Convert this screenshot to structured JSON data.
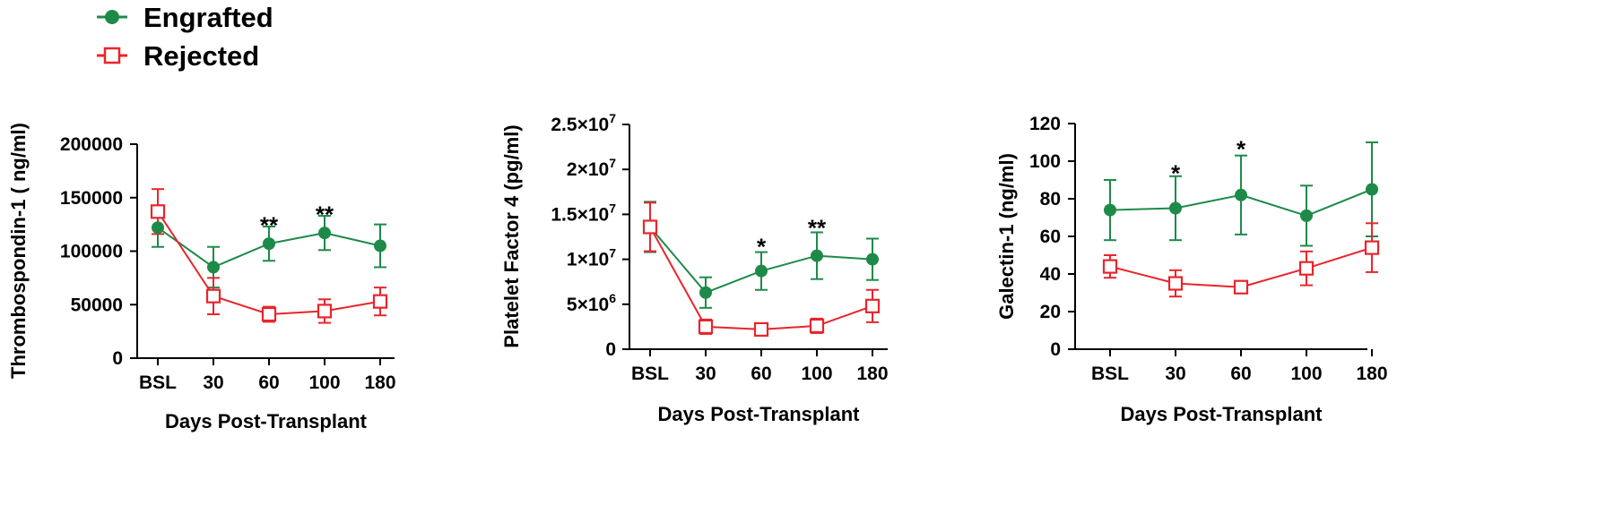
{
  "legend": [
    {
      "name": "Engrafted",
      "color": "#1e8a49",
      "marker": "filled-circle"
    },
    {
      "name": "Rejected",
      "color": "#e8252b",
      "marker": "open-square"
    }
  ],
  "chart_data": [
    {
      "type": "line",
      "ylabel": "Thrombospondin-1 ( ng/ml)",
      "xlabel": "Days Post-Transplant",
      "categories": [
        "BSL",
        "30",
        "60",
        "100",
        "180"
      ],
      "ylim": [
        0,
        200000
      ],
      "yticks": [
        0,
        50000,
        100000,
        150000,
        200000
      ],
      "ytick_labels": [
        "0",
        "50000",
        "100000",
        "150000",
        "200000"
      ],
      "series": [
        {
          "name": "Engrafted",
          "values": [
            122000,
            85000,
            107000,
            117000,
            105000
          ],
          "errors": [
            18000,
            19000,
            16000,
            16000,
            20000
          ]
        },
        {
          "name": "Rejected",
          "values": [
            137000,
            58000,
            41000,
            44000,
            53000
          ],
          "errors": [
            21000,
            17000,
            7000,
            11000,
            13000
          ]
        }
      ],
      "annotations": [
        {
          "category": "60",
          "y": 125000,
          "text": "**"
        },
        {
          "category": "100",
          "y": 135000,
          "text": "**"
        }
      ]
    },
    {
      "type": "line",
      "ylabel": "Platelet Factor 4 (pg/ml)",
      "xlabel": "Days Post-Transplant",
      "categories": [
        "BSL",
        "30",
        "60",
        "100",
        "180"
      ],
      "ylim": [
        0,
        25000000
      ],
      "yticks": [
        0,
        5000000,
        10000000,
        15000000,
        20000000,
        25000000
      ],
      "ytick_labels": [
        {
          "base": "0",
          "exp": ""
        },
        {
          "base": "5×10",
          "exp": "6"
        },
        {
          "base": "1×10",
          "exp": "7"
        },
        {
          "base": "1.5×10",
          "exp": "7"
        },
        {
          "base": "2×10",
          "exp": "7"
        },
        {
          "base": "2.5×10",
          "exp": "7"
        }
      ],
      "series": [
        {
          "name": "Engrafted",
          "values": [
            13600000,
            6300000,
            8700000,
            10400000,
            10000000
          ],
          "errors": [
            2800000,
            1700000,
            2100000,
            2600000,
            2300000
          ]
        },
        {
          "name": "Rejected",
          "values": [
            13600000,
            2500000,
            2200000,
            2600000,
            4800000
          ],
          "errors": [
            2700000,
            800000,
            400000,
            800000,
            1800000
          ]
        }
      ],
      "annotations": [
        {
          "category": "60",
          "y": 11500000,
          "text": "*"
        },
        {
          "category": "100",
          "y": 13600000,
          "text": "**"
        }
      ]
    },
    {
      "type": "line",
      "ylabel": "Galectin-1 (ng/ml)",
      "xlabel": "Days Post-Transplant",
      "categories": [
        "BSL",
        "30",
        "60",
        "100",
        "180"
      ],
      "ylim": [
        0,
        120
      ],
      "yticks": [
        0,
        20,
        40,
        60,
        80,
        100,
        120
      ],
      "ytick_labels": [
        "0",
        "20",
        "40",
        "60",
        "80",
        "100",
        "120"
      ],
      "series": [
        {
          "name": "Engrafted",
          "values": [
            74,
            75,
            82,
            71,
            85
          ],
          "errors": [
            16,
            17,
            21,
            16,
            25
          ]
        },
        {
          "name": "Rejected",
          "values": [
            44,
            35,
            33,
            43,
            54
          ],
          "errors": [
            6,
            7,
            3,
            9,
            13
          ]
        }
      ],
      "annotations": [
        {
          "category": "30",
          "y": 94,
          "text": "*"
        },
        {
          "category": "60",
          "y": 107,
          "text": "*"
        }
      ]
    }
  ]
}
